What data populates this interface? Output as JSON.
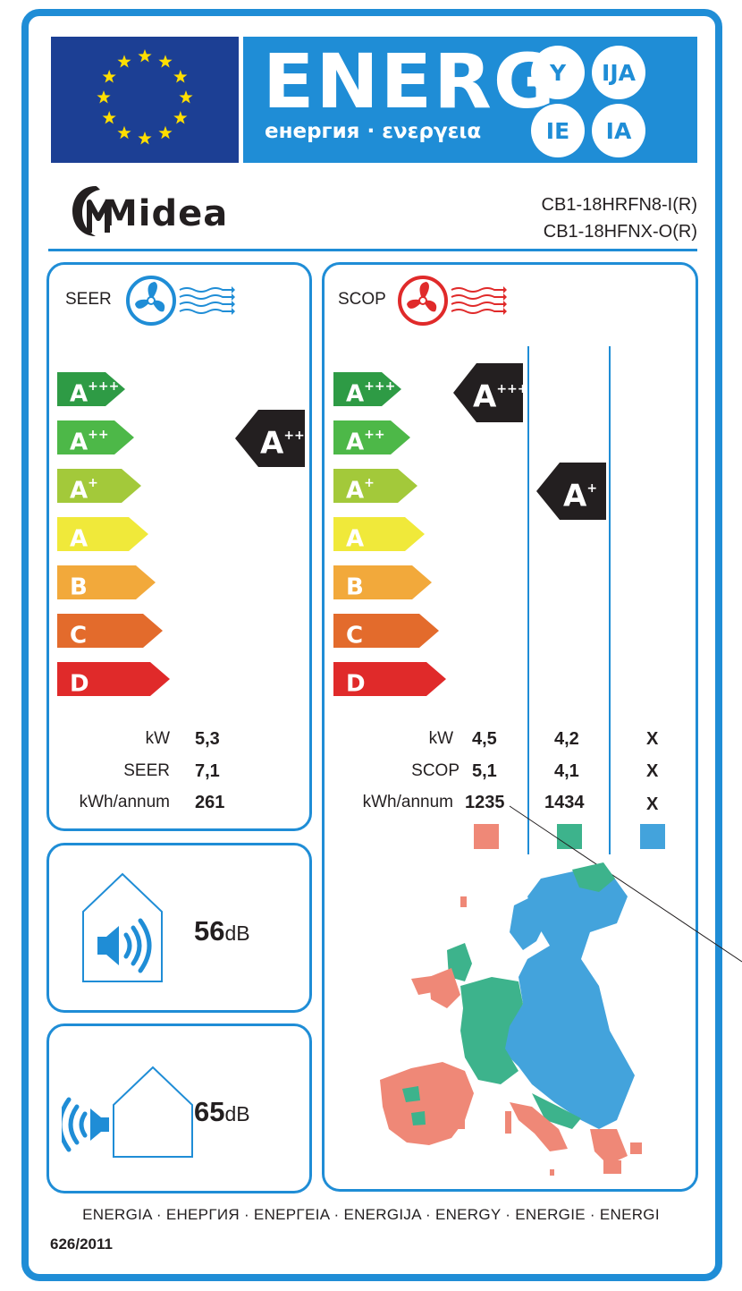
{
  "header": {
    "energy_word": "ENERG",
    "energy_subtitle": "енергия · ενεργεια",
    "suffixes": [
      "Y",
      "IJA",
      "IE",
      "IA"
    ]
  },
  "supplier": {
    "brand": "Midea",
    "model_indoor": "CB1-18HRFN8-I(R)",
    "model_outdoor": "CB1-18HFNX-O(R)"
  },
  "cooling": {
    "title": "SEER",
    "classes": [
      {
        "letter": "A",
        "sup": "+++",
        "color": "#2e9b45"
      },
      {
        "letter": "A",
        "sup": "++",
        "color": "#4db848"
      },
      {
        "letter": "A",
        "sup": "+",
        "color": "#a3c93a"
      },
      {
        "letter": "A",
        "sup": "",
        "color": "#f0e93a"
      },
      {
        "letter": "B",
        "sup": "",
        "color": "#f2a93b"
      },
      {
        "letter": "C",
        "sup": "",
        "color": "#e36b2c"
      },
      {
        "letter": "D",
        "sup": "",
        "color": "#e02a2a"
      }
    ],
    "rating": {
      "letter": "A",
      "sup": "++"
    },
    "rows": [
      {
        "label": "kW",
        "value": "5,3"
      },
      {
        "label": "SEER",
        "value": "7,1"
      },
      {
        "label": "kWh/annum",
        "value": "261"
      }
    ]
  },
  "heating": {
    "title": "SCOP",
    "ratings": [
      {
        "letter": "A",
        "sup": "+++"
      },
      {
        "letter": "A",
        "sup": "+"
      }
    ],
    "rows": [
      {
        "label": "kW",
        "values": [
          "4,5",
          "4,2",
          "X"
        ]
      },
      {
        "label": "SCOP",
        "values": [
          "5,1",
          "4,1",
          "X"
        ]
      },
      {
        "label": "kWh/annum",
        "values": [
          "1235",
          "1434",
          "X"
        ]
      }
    ],
    "season_colors": [
      "#ef8877",
      "#3db38c",
      "#43a3dc"
    ]
  },
  "noise": {
    "indoor_value": "56",
    "indoor_unit": "dB",
    "outdoor_value": "65",
    "outdoor_unit": "dB"
  },
  "footer": {
    "languages": "ENERGIA · ЕНЕРГИЯ · ΕΝΕΡΓΕΙΑ · ENERGIJA · ENERGY · ENERGIE · ENERGI",
    "regulation": "626/2011"
  },
  "colors": {
    "frame_blue": "#1f8dd6",
    "eu_blue": "#1c3f94",
    "eu_star": "#ffde00",
    "cool_fan": "#1f8dd6",
    "heat_fan": "#e02a2a",
    "indicator": "#231f20"
  }
}
